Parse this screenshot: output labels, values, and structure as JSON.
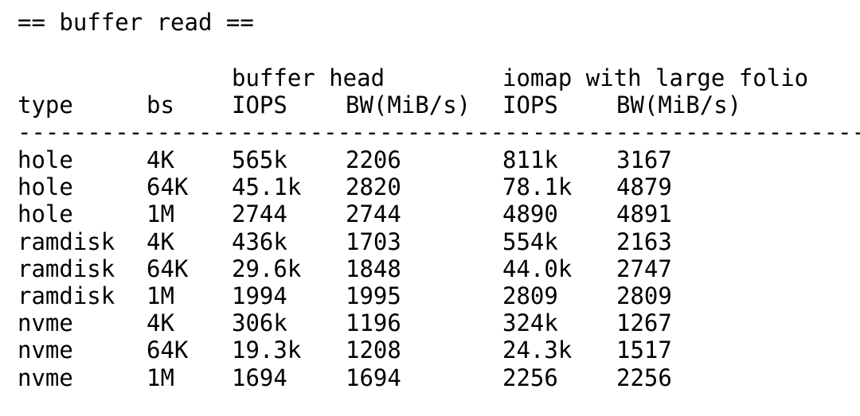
{
  "heading": "== buffer read ==",
  "group_headers": [
    "buffer head",
    "iomap with large folio"
  ],
  "columns": [
    "type",
    "bs",
    "IOPS",
    "BW(MiB/s)",
    "IOPS",
    "BW(MiB/s)"
  ],
  "separator": "-------------------------------------------------------------",
  "rows": [
    [
      "hole",
      "4K",
      "565k",
      "2206",
      "811k",
      "3167"
    ],
    [
      "hole",
      "64K",
      "45.1k",
      "2820",
      "78.1k",
      "4879"
    ],
    [
      "hole",
      "1M",
      "2744",
      "2744",
      "4890",
      "4891"
    ],
    [
      "ramdisk",
      "4K",
      "436k",
      "1703",
      "554k",
      "2163"
    ],
    [
      "ramdisk",
      "64K",
      "29.6k",
      "1848",
      "44.0k",
      "2747"
    ],
    [
      "ramdisk",
      "1M",
      "1994",
      "1995",
      "2809",
      "2809"
    ],
    [
      "nvme",
      "4K",
      "306k",
      "1196",
      "324k",
      "1267"
    ],
    [
      "nvme",
      "64K",
      "19.3k",
      "1208",
      "24.3k",
      "1517"
    ],
    [
      "nvme",
      "1M",
      "1694",
      "1694",
      "2256",
      "2256"
    ]
  ]
}
